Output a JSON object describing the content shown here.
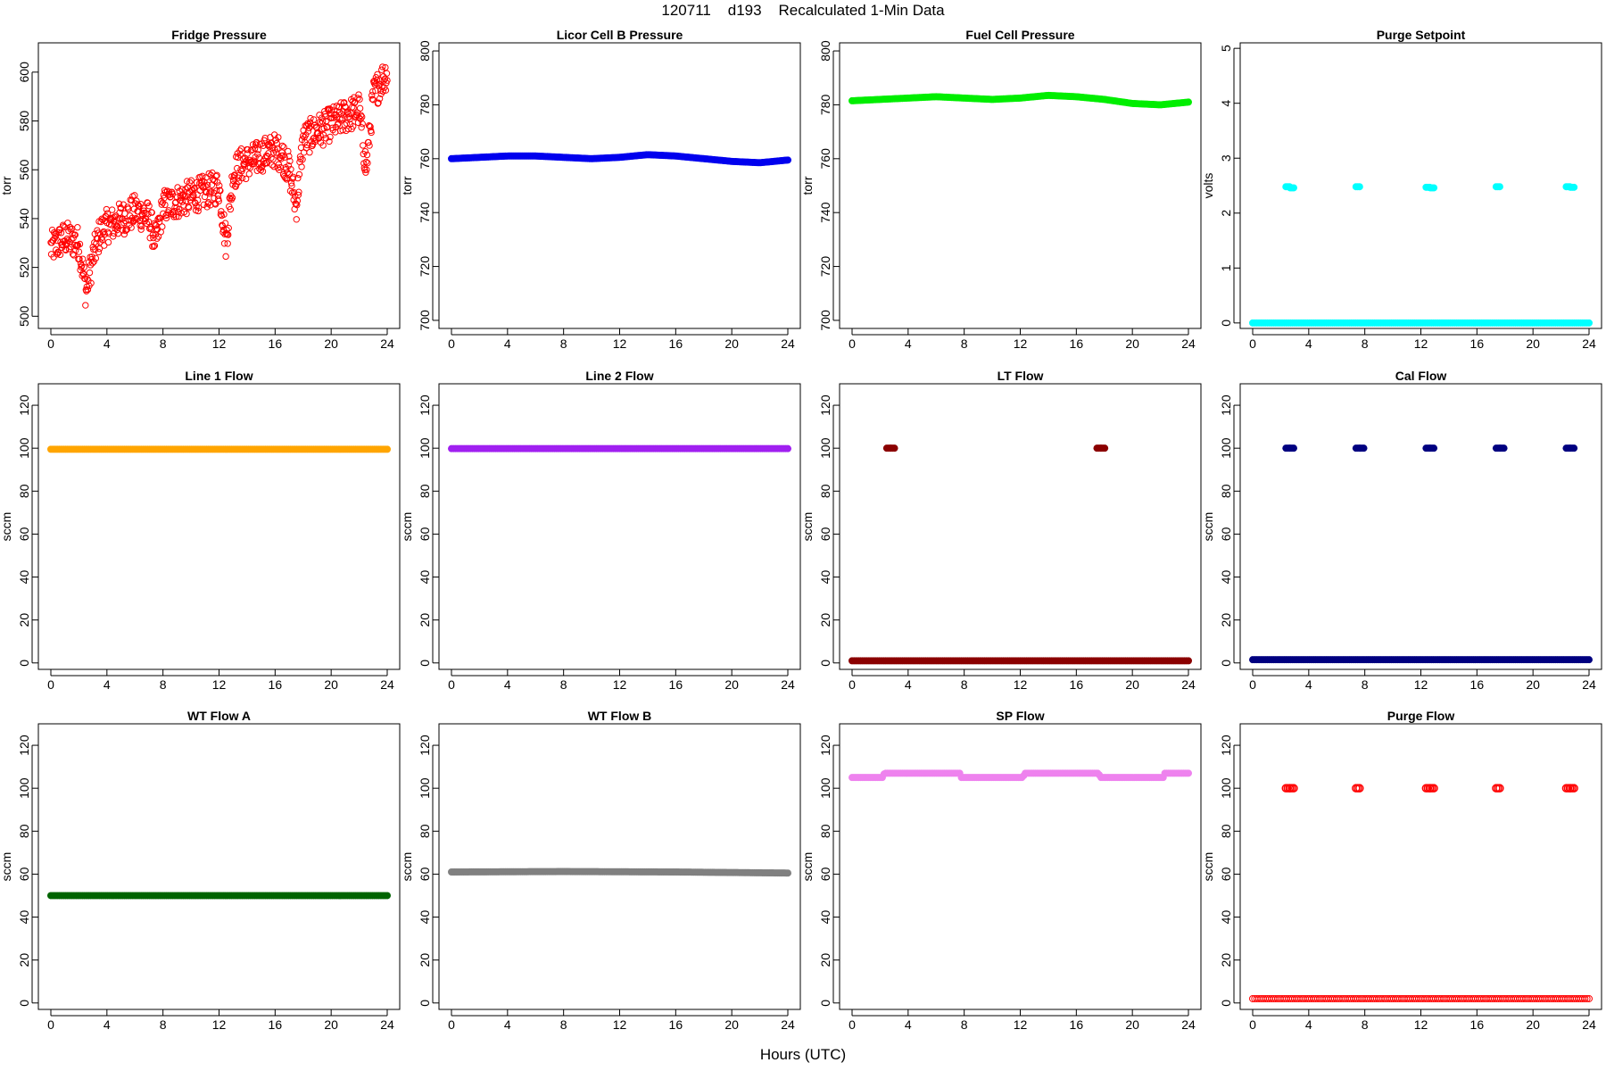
{
  "figure": {
    "title": "120711    d193    Recalculated 1-Min Data",
    "xlabel": "Hours (UTC)"
  },
  "chart_data": [
    {
      "type": "scatter",
      "title": "Fridge Pressure",
      "ylabel": "torr",
      "xlim": [
        0,
        24
      ],
      "ylim": [
        495,
        612
      ],
      "xticks": [
        0,
        4,
        8,
        12,
        16,
        20,
        24
      ],
      "yticks": [
        500,
        520,
        540,
        560,
        580,
        600
      ],
      "grid": false,
      "series": [
        {
          "color": "#ff0000",
          "marker": "open-circle",
          "x": [
            0,
            0.5,
            1,
            1.5,
            2,
            2.5,
            3,
            3.5,
            4,
            4.5,
            5,
            5.5,
            6,
            6.5,
            7,
            7.5,
            8,
            8.5,
            9,
            9.5,
            10,
            10.5,
            11,
            11.5,
            12,
            12.5,
            13,
            13.5,
            14,
            14.5,
            15,
            15.5,
            16,
            16.5,
            17,
            17.5,
            18,
            18.5,
            19,
            19.5,
            20,
            20.5,
            21,
            21.5,
            22,
            22.5,
            23,
            23.5,
            24
          ],
          "y": [
            528,
            530,
            532,
            531,
            530,
            510,
            524,
            534,
            537,
            538,
            540,
            541,
            543,
            542,
            540,
            530,
            545,
            546,
            547,
            548,
            549,
            550,
            551,
            552,
            553,
            530,
            558,
            562,
            563,
            564,
            566,
            567,
            568,
            566,
            560,
            545,
            572,
            574,
            576,
            577,
            579,
            580,
            582,
            583,
            585,
            560,
            590,
            596,
            600
          ],
          "spread": 7
        }
      ]
    },
    {
      "type": "line",
      "title": "Licor Cell B Pressure",
      "ylabel": "torr",
      "xlim": [
        0,
        24
      ],
      "ylim": [
        697,
        803
      ],
      "xticks": [
        0,
        4,
        8,
        12,
        16,
        20,
        24
      ],
      "yticks": [
        700,
        720,
        740,
        760,
        780,
        800
      ],
      "grid": false,
      "series": [
        {
          "color": "#0000ee",
          "marker": "filled-circle",
          "x": [
            0,
            2,
            4,
            6,
            8,
            10,
            12,
            14,
            16,
            18,
            20,
            22,
            24
          ],
          "y": [
            760,
            760.5,
            761,
            761,
            760.5,
            760,
            760.5,
            761.5,
            761,
            760,
            759,
            758.5,
            759.5
          ]
        }
      ]
    },
    {
      "type": "line",
      "title": "Fuel Cell Pressure",
      "ylabel": "torr",
      "xlim": [
        0,
        24
      ],
      "ylim": [
        697,
        803
      ],
      "xticks": [
        0,
        4,
        8,
        12,
        16,
        20,
        24
      ],
      "yticks": [
        700,
        720,
        740,
        760,
        780,
        800
      ],
      "grid": false,
      "series": [
        {
          "color": "#00ee00",
          "marker": "filled-circle",
          "x": [
            0,
            2,
            4,
            6,
            8,
            10,
            12,
            14,
            16,
            18,
            20,
            22,
            24
          ],
          "y": [
            781.5,
            782,
            782.5,
            783,
            782.5,
            782,
            782.5,
            783.5,
            783,
            782,
            780.5,
            780,
            781
          ]
        }
      ]
    },
    {
      "type": "scatter",
      "title": "Purge Setpoint",
      "ylabel": "volts",
      "xlim": [
        0,
        24
      ],
      "ylim": [
        -0.1,
        5.1
      ],
      "xticks": [
        0,
        4,
        8,
        12,
        16,
        20,
        24
      ],
      "yticks": [
        0,
        1,
        2,
        3,
        4,
        5
      ],
      "grid": false,
      "series": [
        {
          "color": "#00ffff",
          "marker": "filled-circle",
          "x": [
            0,
            24
          ],
          "y": [
            0,
            0
          ]
        },
        {
          "color": "#00ffff",
          "marker": "filled-circle",
          "x": [
            2.5,
            2.8,
            7.5,
            12.5,
            12.8,
            17.5,
            22.5,
            22.8
          ],
          "y": [
            2.48,
            2.46,
            2.48,
            2.47,
            2.46,
            2.48,
            2.48,
            2.47
          ]
        }
      ]
    },
    {
      "type": "line",
      "title": "Line 1 Flow",
      "ylabel": "sccm",
      "xlim": [
        0,
        24
      ],
      "ylim": [
        -3,
        130
      ],
      "xticks": [
        0,
        4,
        8,
        12,
        16,
        20,
        24
      ],
      "yticks": [
        0,
        20,
        40,
        60,
        80,
        100,
        120
      ],
      "grid": false,
      "series": [
        {
          "color": "#ffa500",
          "marker": "filled-circle",
          "x": [
            0,
            24
          ],
          "y": [
            99.5,
            99.5
          ]
        }
      ]
    },
    {
      "type": "line",
      "title": "Line 2 Flow",
      "ylabel": "sccm",
      "xlim": [
        0,
        24
      ],
      "ylim": [
        -3,
        130
      ],
      "xticks": [
        0,
        4,
        8,
        12,
        16,
        20,
        24
      ],
      "yticks": [
        0,
        20,
        40,
        60,
        80,
        100,
        120
      ],
      "grid": false,
      "series": [
        {
          "color": "#a020f0",
          "marker": "filled-circle",
          "x": [
            0,
            24
          ],
          "y": [
            99.8,
            99.8
          ]
        }
      ]
    },
    {
      "type": "scatter",
      "title": "LT Flow",
      "ylabel": "sccm",
      "xlim": [
        0,
        24
      ],
      "ylim": [
        -3,
        130
      ],
      "xticks": [
        0,
        4,
        8,
        12,
        16,
        20,
        24
      ],
      "yticks": [
        0,
        20,
        40,
        60,
        80,
        100,
        120
      ],
      "grid": false,
      "series": [
        {
          "color": "#8b0000",
          "marker": "filled-circle",
          "x": [
            0,
            24
          ],
          "y": [
            1,
            1
          ]
        },
        {
          "color": "#8b0000",
          "marker": "filled-circle",
          "x": [
            2.6,
            2.9,
            17.6,
            17.9
          ],
          "y": [
            100,
            100,
            100,
            100
          ]
        }
      ]
    },
    {
      "type": "scatter",
      "title": "Cal Flow",
      "ylabel": "sccm",
      "xlim": [
        0,
        24
      ],
      "ylim": [
        -3,
        130
      ],
      "xticks": [
        0,
        4,
        8,
        12,
        16,
        20,
        24
      ],
      "yticks": [
        0,
        20,
        40,
        60,
        80,
        100,
        120
      ],
      "grid": false,
      "series": [
        {
          "color": "#000080",
          "marker": "filled-circle",
          "x": [
            0,
            24
          ],
          "y": [
            1.5,
            1.5
          ]
        },
        {
          "color": "#000080",
          "marker": "filled-circle",
          "x": [
            2.5,
            2.8,
            7.5,
            7.8,
            12.5,
            12.8,
            17.5,
            17.8,
            22.5,
            22.8
          ],
          "y": [
            100,
            100,
            100,
            100,
            100,
            100,
            100,
            100,
            100,
            100
          ]
        }
      ]
    },
    {
      "type": "line",
      "title": "WT Flow A",
      "ylabel": "sccm",
      "xlim": [
        0,
        24
      ],
      "ylim": [
        -3,
        130
      ],
      "xticks": [
        0,
        4,
        8,
        12,
        16,
        20,
        24
      ],
      "yticks": [
        0,
        20,
        40,
        60,
        80,
        100,
        120
      ],
      "grid": false,
      "series": [
        {
          "color": "#006400",
          "marker": "filled-circle",
          "x": [
            0,
            24
          ],
          "y": [
            50,
            50
          ]
        }
      ]
    },
    {
      "type": "line",
      "title": "WT Flow B",
      "ylabel": "sccm",
      "xlim": [
        0,
        24
      ],
      "ylim": [
        -3,
        130
      ],
      "xticks": [
        0,
        4,
        8,
        12,
        16,
        20,
        24
      ],
      "yticks": [
        0,
        20,
        40,
        60,
        80,
        100,
        120
      ],
      "grid": false,
      "series": [
        {
          "color": "#808080",
          "marker": "filled-circle",
          "x": [
            0,
            8,
            16,
            24
          ],
          "y": [
            61,
            61.2,
            61,
            60.5
          ]
        }
      ]
    },
    {
      "type": "line",
      "title": "SP Flow",
      "ylabel": "sccm",
      "xlim": [
        0,
        24
      ],
      "ylim": [
        -3,
        130
      ],
      "xticks": [
        0,
        4,
        8,
        12,
        16,
        20,
        24
      ],
      "yticks": [
        0,
        20,
        40,
        60,
        80,
        100,
        120
      ],
      "grid": false,
      "series": [
        {
          "color": "#ee82ee",
          "marker": "filled-circle",
          "x": [
            0,
            2.2,
            2.3,
            7.7,
            7.8,
            12.2,
            12.3,
            17.6,
            17.7,
            22.2,
            22.3,
            24
          ],
          "y": [
            105,
            105,
            107,
            107,
            105,
            105,
            107,
            107,
            105,
            105,
            107,
            107
          ]
        }
      ]
    },
    {
      "type": "scatter",
      "title": "Purge Flow",
      "ylabel": "sccm",
      "xlim": [
        0,
        24
      ],
      "ylim": [
        -3,
        130
      ],
      "xticks": [
        0,
        4,
        8,
        12,
        16,
        20,
        24
      ],
      "yticks": [
        0,
        20,
        40,
        60,
        80,
        100,
        120
      ],
      "grid": false,
      "series": [
        {
          "color": "#ff0000",
          "marker": "open-circle",
          "x": [
            0,
            24
          ],
          "y": [
            2,
            2
          ]
        },
        {
          "color": "#ff0000",
          "marker": "open-circle",
          "x": [
            2.5,
            2.8,
            7.5,
            12.5,
            12.8,
            17.5,
            22.5,
            22.8
          ],
          "y": [
            100,
            100,
            100,
            100,
            100,
            100,
            100,
            100
          ]
        }
      ]
    }
  ]
}
